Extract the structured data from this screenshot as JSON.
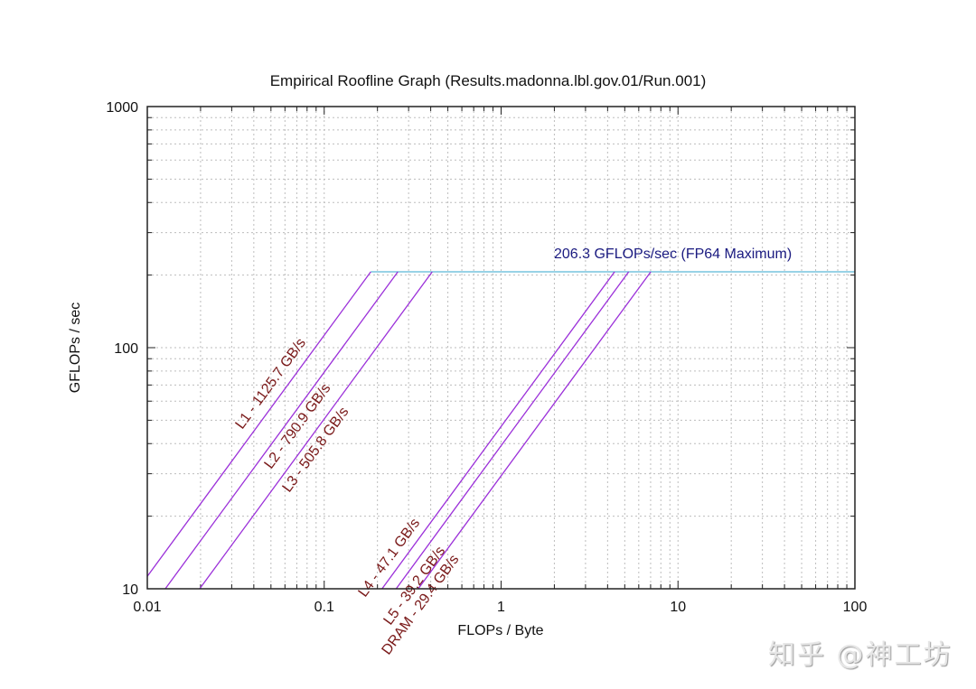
{
  "chart_data": {
    "type": "line",
    "title": "Empirical Roofline Graph (Results.madonna.lbl.gov.01/Run.001)",
    "xlabel": "FLOPs / Byte",
    "ylabel": "GFLOPs / sec",
    "xscale": "log",
    "yscale": "log",
    "xlim": [
      0.01,
      100
    ],
    "ylim": [
      10,
      1000
    ],
    "x_ticks": [
      "0.01",
      "0.1",
      "1",
      "10",
      "100"
    ],
    "y_ticks": [
      "10",
      "100",
      "1000"
    ],
    "grid": true,
    "compute_ceiling": {
      "label": "206.3 GFLOPs/sec (FP64 Maximum)",
      "value": 206.3,
      "color": "#5bb6d6"
    },
    "series": [
      {
        "name": "L1",
        "label": "L1 - 1125.7 GB/s",
        "bandwidth_gbs": 1125.7,
        "x": [
          0.00888,
          0.1833
        ],
        "y": [
          10,
          206.3
        ]
      },
      {
        "name": "L2",
        "label": "L2 - 790.9 GB/s",
        "bandwidth_gbs": 790.9,
        "x": [
          0.01264,
          0.2608
        ],
        "y": [
          10,
          206.3
        ]
      },
      {
        "name": "L3",
        "label": "L3 - 505.8 GB/s",
        "bandwidth_gbs": 505.8,
        "x": [
          0.01977,
          0.4079
        ],
        "y": [
          10,
          206.3
        ]
      },
      {
        "name": "L4",
        "label": "L4 - 47.1 GB/s",
        "bandwidth_gbs": 47.1,
        "x": [
          0.2123,
          4.38
        ],
        "y": [
          10,
          206.3
        ]
      },
      {
        "name": "L5",
        "label": "L5 - 39.2 GB/s",
        "bandwidth_gbs": 39.2,
        "x": [
          0.2551,
          5.263
        ],
        "y": [
          10,
          206.3
        ]
      },
      {
        "name": "DRAM",
        "label": "DRAM - 29.4 GB/s",
        "bandwidth_gbs": 29.4,
        "x": [
          0.3401,
          7.017
        ],
        "y": [
          10,
          206.3
        ]
      }
    ],
    "line_color": "#9b30d9",
    "label_color": "#7a1a1a",
    "ceiling_label_color": "#1a1a80"
  },
  "watermark": "知乎 @神工坊"
}
